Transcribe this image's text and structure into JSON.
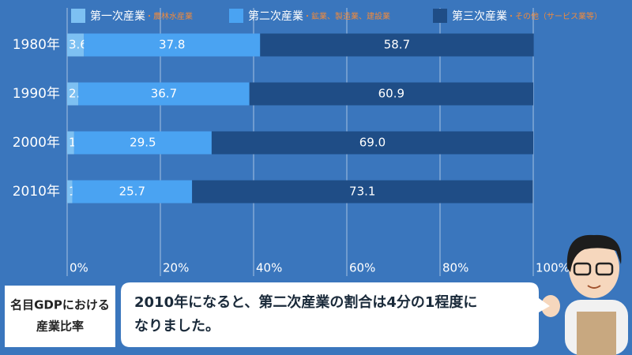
{
  "chart_data": {
    "type": "stacked_barh",
    "categories": [
      "1980年",
      "1990年",
      "2000年",
      "2010年"
    ],
    "series": [
      {
        "name": "第一次産業",
        "note": "・農林水産業",
        "color": "#7dc0f2",
        "values": [
          3.6,
          2.4,
          1.5,
          1.1
        ]
      },
      {
        "name": "第二次産業",
        "note": "・鉱業、製造業、建設業",
        "color": "#4aa3f2",
        "values": [
          37.8,
          36.7,
          29.5,
          25.7
        ]
      },
      {
        "name": "第三次産業",
        "note": "・その他（サービス業等）",
        "color": "#1f4d86",
        "values": [
          58.7,
          60.9,
          69.0,
          73.1
        ],
        "value_labels": [
          "58.7",
          "60.9",
          "69.0",
          "73.1"
        ]
      }
    ],
    "xlim": [
      0,
      100
    ],
    "xticks": [
      {
        "value": 0,
        "label": "0%"
      },
      {
        "value": 20,
        "label": "20%"
      },
      {
        "value": 40,
        "label": "40%"
      },
      {
        "value": 60,
        "label": "60%"
      },
      {
        "value": 80,
        "label": "80%"
      },
      {
        "value": 100,
        "label": "100%"
      }
    ],
    "grid": true
  },
  "caption": {
    "lines": [
      "名目GDPにおける",
      "産業比率"
    ]
  },
  "speech": {
    "lines": [
      "2010年になると、第二次産業の割合は4分の1程度に",
      "なりました。"
    ]
  }
}
